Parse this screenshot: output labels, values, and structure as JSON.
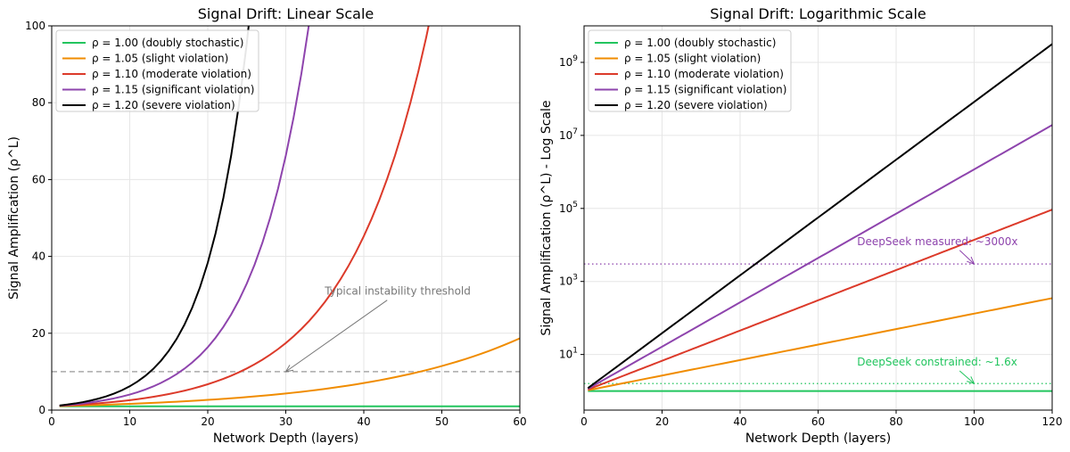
{
  "chart_data": [
    {
      "type": "line",
      "title": "Signal Drift: Linear Scale",
      "xlabel": "Network Depth (layers)",
      "ylabel": "Signal Amplification (ρ^L)",
      "xlim": [
        0,
        60
      ],
      "ylim": [
        0,
        100
      ],
      "yscale": "linear",
      "x_range": [
        1,
        60
      ],
      "xticks": [
        0,
        10,
        20,
        30,
        40,
        50,
        60
      ],
      "yticks": [
        0,
        20,
        40,
        60,
        80,
        100
      ],
      "grid": true,
      "legend": "top-left",
      "series": [
        {
          "name": "ρ = 1.00 (doubly stochastic)",
          "rho": 1.0,
          "color": "#22c55e"
        },
        {
          "name": "ρ = 1.05 (slight violation)",
          "rho": 1.05,
          "color": "#f08c00"
        },
        {
          "name": "ρ = 1.10 (moderate violation)",
          "rho": 1.1,
          "color": "#dc3a2a"
        },
        {
          "name": "ρ = 1.15 (significant violation)",
          "rho": 1.15,
          "color": "#8e44ad"
        },
        {
          "name": "ρ = 1.20 (severe violation)",
          "rho": 1.2,
          "color": "#000000"
        }
      ],
      "threshold": {
        "y": 10,
        "color": "#aaaaaa"
      },
      "annotations": [
        {
          "text": "Typical instability threshold",
          "text_at": [
            35,
            30
          ],
          "arrow_to": [
            30,
            10
          ],
          "color": "#777777"
        }
      ]
    },
    {
      "type": "line",
      "title": "Signal Drift: Logarithmic Scale",
      "xlabel": "Network Depth (layers)",
      "ylabel": "Signal Amplification (ρ^L) - Log Scale",
      "xlim": [
        0,
        120
      ],
      "ylim": [
        0.3,
        10000000000.0
      ],
      "yscale": "log",
      "x_range": [
        1,
        120
      ],
      "xticks": [
        0,
        20,
        40,
        60,
        80,
        100,
        120
      ],
      "yticks": [
        {
          "base": "10",
          "exp": "1",
          "value": 10
        },
        {
          "base": "10",
          "exp": "3",
          "value": 1000
        },
        {
          "base": "10",
          "exp": "5",
          "value": 100000
        },
        {
          "base": "10",
          "exp": "7",
          "value": 10000000
        },
        {
          "base": "10",
          "exp": "9",
          "value": 1000000000
        }
      ],
      "grid": true,
      "legend": "top-left",
      "series": [
        {
          "name": "ρ = 1.00 (doubly stochastic)",
          "rho": 1.0,
          "color": "#22c55e"
        },
        {
          "name": "ρ = 1.05 (slight violation)",
          "rho": 1.05,
          "color": "#f08c00"
        },
        {
          "name": "ρ = 1.10 (moderate violation)",
          "rho": 1.1,
          "color": "#dc3a2a"
        },
        {
          "name": "ρ = 1.15 (significant violation)",
          "rho": 1.15,
          "color": "#8e44ad"
        },
        {
          "name": "ρ = 1.20 (severe violation)",
          "rho": 1.2,
          "color": "#000000"
        }
      ],
      "reference_lines": [
        {
          "y": 3000,
          "color": "#8e44ad"
        },
        {
          "y": 1.6,
          "color": "#22c55e"
        }
      ],
      "annotations": [
        {
          "text": "DeepSeek measured: ~3000x",
          "text_at": [
            70,
            10000
          ],
          "arrow_to": [
            100,
            3000
          ],
          "color": "#8e44ad"
        },
        {
          "text": "DeepSeek constrained: ~1.6x",
          "text_at": [
            70,
            5
          ],
          "arrow_to": [
            100,
            1.6
          ],
          "color": "#22c55e"
        }
      ]
    }
  ]
}
